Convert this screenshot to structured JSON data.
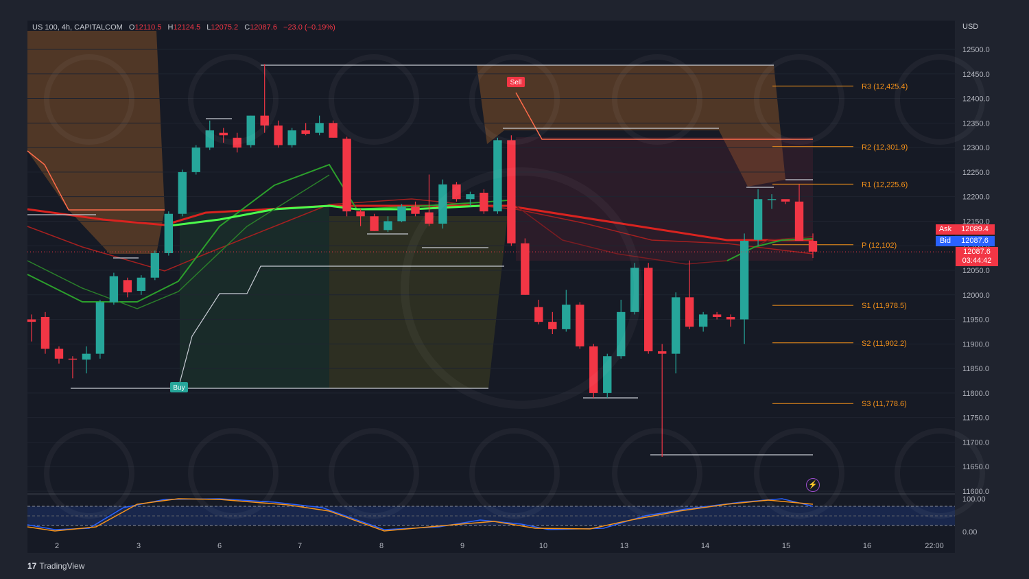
{
  "header": {
    "symbol": "US 100, 4h, CAPITALCOM",
    "open_label": "O",
    "open": "12110.5",
    "high_label": "H",
    "high": "12124.5",
    "low_label": "L",
    "low": "12075.2",
    "close_label": "C",
    "close": "12087.6",
    "change": "−23.0 (−0.19%)"
  },
  "price_axis": {
    "currency": "USD",
    "ask_label": "Ask",
    "ask": "12089.4",
    "bid_label": "Bid",
    "bid": "12087.6",
    "last_price": "12087.6",
    "countdown": "03:44:42"
  },
  "branding": {
    "logo": "TradingView",
    "logo_mark": "17"
  },
  "signals": {
    "buy": "Buy",
    "sell": "Sell"
  },
  "colors": {
    "up": "#26a69a",
    "down": "#f23645",
    "pivot": "#f7931a",
    "ask": "#f23645",
    "bid": "#2962ff"
  },
  "chart_data": {
    "type": "candlestick",
    "ylim": [
      11560,
      12530
    ],
    "y_ticks": [
      "12500.0",
      "12450.0",
      "12400.0",
      "12350.0",
      "12300.0",
      "12250.0",
      "12200.0",
      "12150.0",
      "12100.0",
      "12050.0",
      "12000.0",
      "11950.0",
      "11900.0",
      "11850.0",
      "11800.0",
      "11750.0",
      "11700.0",
      "11650.0",
      "11600.0"
    ],
    "x_ticks": [
      "2",
      "3",
      "6",
      "7",
      "8",
      "9",
      "10",
      "13",
      "14",
      "15",
      "16",
      "22:00"
    ],
    "pivots": [
      {
        "label": "R3 (12,425.4)",
        "value": 12425.4
      },
      {
        "label": "R2 (12,301.9)",
        "value": 12301.9
      },
      {
        "label": "R1 (12,225.6)",
        "value": 12225.6
      },
      {
        "label": "P (12,102)",
        "value": 12102
      },
      {
        "label": "S1 (11,978.5)",
        "value": 11978.5
      },
      {
        "label": "S2 (11,902.2)",
        "value": 11902.2
      },
      {
        "label": "S3 (11,778.6)",
        "value": 11778.6
      }
    ],
    "candles": [
      [
        11950,
        11960,
        11905,
        11945
      ],
      [
        11955,
        11965,
        11880,
        11890
      ],
      [
        11890,
        11895,
        11860,
        11870
      ],
      [
        11870,
        11875,
        11830,
        11868
      ],
      [
        11868,
        11895,
        11840,
        11880
      ],
      [
        11880,
        11990,
        11870,
        11985
      ],
      [
        11985,
        12045,
        11980,
        12038
      ],
      [
        12030,
        12035,
        11995,
        12005
      ],
      [
        12008,
        12040,
        12000,
        12035
      ],
      [
        12035,
        12090,
        12030,
        12085
      ],
      [
        12085,
        12170,
        12080,
        12165
      ],
      [
        12165,
        12255,
        12160,
        12250
      ],
      [
        12250,
        12305,
        12245,
        12300
      ],
      [
        12300,
        12355,
        12295,
        12335
      ],
      [
        12330,
        12340,
        12310,
        12325
      ],
      [
        12320,
        12330,
        12290,
        12300
      ],
      [
        12305,
        12365,
        12300,
        12365
      ],
      [
        12365,
        12470,
        12330,
        12345
      ],
      [
        12345,
        12355,
        12300,
        12305
      ],
      [
        12305,
        12340,
        12300,
        12335
      ],
      [
        12335,
        12350,
        12325,
        12328
      ],
      [
        12330,
        12365,
        12325,
        12350
      ],
      [
        12350,
        12355,
        12320,
        12320
      ],
      [
        12318,
        12322,
        12160,
        12170
      ],
      [
        12170,
        12175,
        12140,
        12160
      ],
      [
        12160,
        12165,
        12130,
        12130
      ],
      [
        12132,
        12160,
        12128,
        12150
      ],
      [
        12150,
        12185,
        12148,
        12180
      ],
      [
        12180,
        12190,
        12160,
        12165
      ],
      [
        12168,
        12245,
        12140,
        12145
      ],
      [
        12145,
        12235,
        12135,
        12225
      ],
      [
        12225,
        12230,
        12190,
        12195
      ],
      [
        12195,
        12210,
        12180,
        12205
      ],
      [
        12208,
        12215,
        12165,
        12170
      ],
      [
        12170,
        12320,
        12165,
        12315
      ],
      [
        12315,
        12325,
        12100,
        12105
      ],
      [
        12105,
        12115,
        12000,
        12000
      ],
      [
        11975,
        11990,
        11940,
        11945
      ],
      [
        11945,
        11965,
        11920,
        11930
      ],
      [
        11930,
        12010,
        11925,
        11980
      ],
      [
        11980,
        11985,
        11890,
        11895
      ],
      [
        11895,
        11900,
        11790,
        11800
      ],
      [
        11800,
        11880,
        11790,
        11875
      ],
      [
        11875,
        11990,
        11870,
        11965
      ],
      [
        11965,
        12065,
        11960,
        12055
      ],
      [
        12055,
        12065,
        11880,
        11885
      ],
      [
        11885,
        11900,
        11670,
        11880
      ],
      [
        11880,
        12005,
        11840,
        11995
      ],
      [
        11995,
        12070,
        11930,
        11935
      ],
      [
        11935,
        11965,
        11925,
        11960
      ],
      [
        11960,
        11965,
        11950,
        11955
      ],
      [
        11955,
        11960,
        11935,
        11950
      ],
      [
        11950,
        12125,
        11900,
        12110
      ],
      [
        12112,
        12215,
        12100,
        12195
      ],
      [
        12195,
        12205,
        12175,
        12195
      ],
      [
        12195,
        12190,
        12185,
        12190
      ],
      [
        12190,
        12225,
        12115,
        12110
      ],
      [
        12110,
        12125,
        12075,
        12088
      ]
    ]
  }
}
